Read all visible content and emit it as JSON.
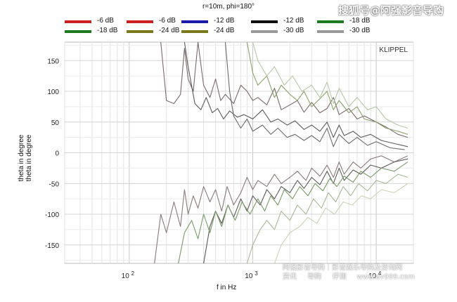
{
  "header": {
    "title": "r=10m, phi=180°"
  },
  "watermarks": {
    "top": "搜狐号@阿强影音导购",
    "bottom_line1": "阿强影音导购｜影音娱乐导购及咨询网",
    "bottom_line2": [
      "资讯",
      "导购",
      "评测"
    ],
    "bottom_site": "www.av999.com"
  },
  "chart_data": {
    "type": "line",
    "title": "r=10m, phi=180°",
    "xlabel": "f in Hz",
    "ylabel": "theta in degree",
    "ylabel_repeat": "theta in degree",
    "x_scale": "log",
    "xlim": [
      30,
      20000
    ],
    "ylim": [
      -180,
      180
    ],
    "x_ticks": [
      {
        "value": 100,
        "base": "10",
        "exp": "2"
      },
      {
        "value": 1000,
        "base": "10",
        "exp": "3"
      },
      {
        "value": 10000,
        "base": "10",
        "exp": "4"
      }
    ],
    "y_ticks": [
      150,
      100,
      50,
      0,
      -50,
      -100,
      -150
    ],
    "grid": true,
    "watermark": "KLIPPEL",
    "legend_position": "top",
    "legend": [
      {
        "label": "-6 dB",
        "color": "#cc2020"
      },
      {
        "label": "-6 dB",
        "color": "#cc2020"
      },
      {
        "label": "-12 dB",
        "color": "#1a1aaa"
      },
      {
        "label": "-12 dB",
        "color": "#111111"
      },
      {
        "label": "-18 dB",
        "color": "#1e7a1e"
      },
      {
        "label": "-18 dB",
        "color": "#1e7a1e"
      },
      {
        "label": "-24 dB",
        "color": "#7a7a1a"
      },
      {
        "label": "-24 dB",
        "color": "#7a7a1a"
      },
      {
        "label": "-30 dB",
        "color": "#9a9a9a"
      },
      {
        "label": "-30 dB",
        "color": "#9a9a9a"
      }
    ],
    "series": [
      {
        "color": "#7a6a6a",
        "points": [
          [
            180,
            180
          ],
          [
            200,
            85
          ],
          [
            230,
            80
          ],
          [
            260,
            95
          ],
          [
            280,
            170
          ],
          [
            300,
            120
          ],
          [
            330,
            100
          ],
          [
            360,
            180
          ],
          [
            400,
            110
          ],
          [
            450,
            90
          ],
          [
            500,
            120
          ],
          [
            550,
            85
          ],
          [
            600,
            95
          ],
          [
            700,
            80
          ],
          [
            800,
            110
          ],
          [
            900,
            100
          ],
          [
            1000,
            85
          ],
          [
            1100,
            90
          ],
          [
            1300,
            78
          ],
          [
            1500,
            105
          ],
          [
            1700,
            70
          ],
          [
            2000,
            78
          ],
          [
            2300,
            85
          ],
          [
            2600,
            66
          ],
          [
            3000,
            82
          ],
          [
            3500,
            65
          ],
          [
            4000,
            72
          ],
          [
            4500,
            90
          ],
          [
            5000,
            62
          ],
          [
            6000,
            72
          ],
          [
            7000,
            55
          ],
          [
            8000,
            60
          ],
          [
            10000,
            50
          ],
          [
            12000,
            42
          ],
          [
            15000,
            30
          ],
          [
            18000,
            25
          ]
        ]
      },
      {
        "color": "#5a5a5a",
        "points": [
          [
            280,
            180
          ],
          [
            300,
            140
          ],
          [
            340,
            80
          ],
          [
            380,
            70
          ],
          [
            420,
            90
          ],
          [
            470,
            65
          ],
          [
            520,
            72
          ],
          [
            580,
            55
          ],
          [
            650,
            68
          ],
          [
            750,
            58
          ],
          [
            850,
            62
          ],
          [
            1000,
            55
          ],
          [
            1200,
            70
          ],
          [
            1400,
            50
          ],
          [
            1600,
            55
          ],
          [
            1900,
            45
          ],
          [
            2200,
            52
          ],
          [
            2600,
            38
          ],
          [
            3000,
            45
          ],
          [
            3500,
            35
          ],
          [
            4000,
            50
          ],
          [
            4500,
            25
          ],
          [
            5000,
            45
          ],
          [
            5500,
            28
          ],
          [
            6500,
            35
          ],
          [
            7500,
            25
          ],
          [
            9000,
            30
          ],
          [
            11000,
            20
          ],
          [
            14000,
            15
          ],
          [
            18000,
            10
          ]
        ]
      },
      {
        "color": "#6a6a6a",
        "points": [
          [
            600,
            180
          ],
          [
            650,
            100
          ],
          [
            700,
            60
          ],
          [
            800,
            40
          ],
          [
            900,
            55
          ],
          [
            1000,
            35
          ],
          [
            1200,
            45
          ],
          [
            1400,
            30
          ],
          [
            1600,
            40
          ],
          [
            1900,
            25
          ],
          [
            2200,
            30
          ],
          [
            2600,
            20
          ],
          [
            3000,
            28
          ],
          [
            3500,
            18
          ],
          [
            4000,
            40
          ],
          [
            4500,
            10
          ],
          [
            5000,
            30
          ],
          [
            6000,
            15
          ],
          [
            7000,
            25
          ],
          [
            8500,
            12
          ],
          [
            10000,
            18
          ],
          [
            13000,
            8
          ],
          [
            17000,
            5
          ]
        ]
      },
      {
        "color": "#8aa06a",
        "points": [
          [
            900,
            180
          ],
          [
            1000,
            130
          ],
          [
            1100,
            110
          ],
          [
            1300,
            125
          ],
          [
            1500,
            90
          ],
          [
            1700,
            110
          ],
          [
            2000,
            95
          ],
          [
            2300,
            85
          ],
          [
            2600,
            100
          ],
          [
            3000,
            75
          ],
          [
            3500,
            88
          ],
          [
            4000,
            100
          ],
          [
            4500,
            70
          ],
          [
            5000,
            85
          ],
          [
            6000,
            65
          ],
          [
            7000,
            75
          ],
          [
            8000,
            55
          ],
          [
            10000,
            50
          ],
          [
            12000,
            40
          ],
          [
            15000,
            35
          ],
          [
            18000,
            30
          ]
        ]
      },
      {
        "color": "#b6c8a6",
        "points": [
          [
            1000,
            180
          ],
          [
            1100,
            150
          ],
          [
            1300,
            125
          ],
          [
            1500,
            140
          ],
          [
            1800,
            110
          ],
          [
            2100,
            125
          ],
          [
            2500,
            100
          ],
          [
            3000,
            110
          ],
          [
            3500,
            90
          ],
          [
            4000,
            115
          ],
          [
            4500,
            80
          ],
          [
            5000,
            105
          ],
          [
            6000,
            75
          ],
          [
            7000,
            90
          ],
          [
            8500,
            70
          ],
          [
            10000,
            75
          ],
          [
            12000,
            55
          ],
          [
            15000,
            45
          ],
          [
            18000,
            40
          ]
        ]
      },
      {
        "color": "#8a7a7a",
        "points": [
          [
            160,
            -180
          ],
          [
            180,
            -100
          ],
          [
            200,
            -130
          ],
          [
            230,
            -80
          ],
          [
            260,
            -120
          ],
          [
            280,
            -60
          ],
          [
            300,
            -100
          ],
          [
            330,
            -70
          ],
          [
            360,
            -90
          ],
          [
            400,
            -55
          ],
          [
            450,
            -80
          ],
          [
            500,
            -60
          ],
          [
            560,
            -95
          ],
          [
            620,
            -55
          ],
          [
            700,
            -85
          ],
          [
            800,
            -65
          ],
          [
            900,
            -40
          ],
          [
            1000,
            -60
          ],
          [
            1100,
            -45
          ],
          [
            1300,
            -55
          ],
          [
            1500,
            -35
          ],
          [
            1700,
            -50
          ],
          [
            2000,
            -40
          ],
          [
            2300,
            -30
          ],
          [
            2700,
            -45
          ],
          [
            3000,
            -25
          ],
          [
            3500,
            -38
          ],
          [
            4000,
            -20
          ],
          [
            4500,
            -40
          ],
          [
            5000,
            -15
          ],
          [
            5500,
            -35
          ],
          [
            6500,
            -15
          ],
          [
            7500,
            -25
          ],
          [
            9000,
            -10
          ],
          [
            11000,
            -5
          ],
          [
            14000,
            -15
          ],
          [
            18000,
            -5
          ]
        ]
      },
      {
        "color": "#5a5a5a",
        "points": [
          [
            400,
            -180
          ],
          [
            450,
            -120
          ],
          [
            500,
            -95
          ],
          [
            560,
            -115
          ],
          [
            630,
            -85
          ],
          [
            700,
            -105
          ],
          [
            800,
            -75
          ],
          [
            900,
            -95
          ],
          [
            1000,
            -70
          ],
          [
            1150,
            -85
          ],
          [
            1300,
            -60
          ],
          [
            1500,
            -75
          ],
          [
            1700,
            -55
          ],
          [
            2000,
            -65
          ],
          [
            2300,
            -45
          ],
          [
            2600,
            -58
          ],
          [
            3000,
            -40
          ],
          [
            3500,
            -52
          ],
          [
            4000,
            -30
          ],
          [
            4500,
            -50
          ],
          [
            5000,
            -25
          ],
          [
            5500,
            -45
          ],
          [
            6500,
            -28
          ],
          [
            7500,
            -35
          ],
          [
            9000,
            -20
          ],
          [
            11000,
            -25
          ],
          [
            14000,
            -15
          ],
          [
            18000,
            -10
          ]
        ]
      },
      {
        "color": "#7a9a6a",
        "points": [
          [
            250,
            -180
          ],
          [
            280,
            -130
          ],
          [
            320,
            -110
          ],
          [
            360,
            -140
          ],
          [
            400,
            -100
          ],
          [
            450,
            -130
          ],
          [
            500,
            -95
          ],
          [
            560,
            -120
          ],
          [
            630,
            -85
          ],
          [
            720,
            -110
          ],
          [
            820,
            -80
          ],
          [
            950,
            -100
          ],
          [
            1100,
            -75
          ],
          [
            1250,
            -95
          ],
          [
            1400,
            -70
          ],
          [
            1600,
            -85
          ],
          [
            1800,
            -60
          ],
          [
            2100,
            -75
          ],
          [
            2400,
            -55
          ],
          [
            2800,
            -70
          ],
          [
            3200,
            -50
          ],
          [
            3700,
            -62
          ],
          [
            4200,
            -42
          ],
          [
            4800,
            -55
          ],
          [
            5500,
            -38
          ],
          [
            6500,
            -48
          ],
          [
            7500,
            -30
          ],
          [
            9000,
            -40
          ],
          [
            11000,
            -25
          ],
          [
            14000,
            -30
          ],
          [
            18000,
            -15
          ]
        ]
      },
      {
        "color": "#a8b898",
        "points": [
          [
            900,
            -180
          ],
          [
            1000,
            -150
          ],
          [
            1150,
            -125
          ],
          [
            1300,
            -110
          ],
          [
            1500,
            -125
          ],
          [
            1700,
            -95
          ],
          [
            2000,
            -110
          ],
          [
            2300,
            -85
          ],
          [
            2700,
            -100
          ],
          [
            3100,
            -75
          ],
          [
            3600,
            -90
          ],
          [
            4100,
            -65
          ],
          [
            4700,
            -80
          ],
          [
            5400,
            -55
          ],
          [
            6200,
            -70
          ],
          [
            7200,
            -50
          ],
          [
            8500,
            -62
          ],
          [
            10000,
            -45
          ],
          [
            12000,
            -50
          ],
          [
            15000,
            -35
          ],
          [
            18000,
            -40
          ]
        ]
      },
      {
        "color": "#c8d4b8",
        "points": [
          [
            1500,
            -180
          ],
          [
            1700,
            -150
          ],
          [
            2000,
            -130
          ],
          [
            2400,
            -120
          ],
          [
            2800,
            -105
          ],
          [
            3300,
            -115
          ],
          [
            3900,
            -90
          ],
          [
            4600,
            -100
          ],
          [
            5400,
            -80
          ],
          [
            6400,
            -85
          ],
          [
            7600,
            -70
          ],
          [
            9000,
            -75
          ],
          [
            11000,
            -60
          ],
          [
            14000,
            -65
          ],
          [
            18000,
            -50
          ]
        ]
      }
    ]
  }
}
